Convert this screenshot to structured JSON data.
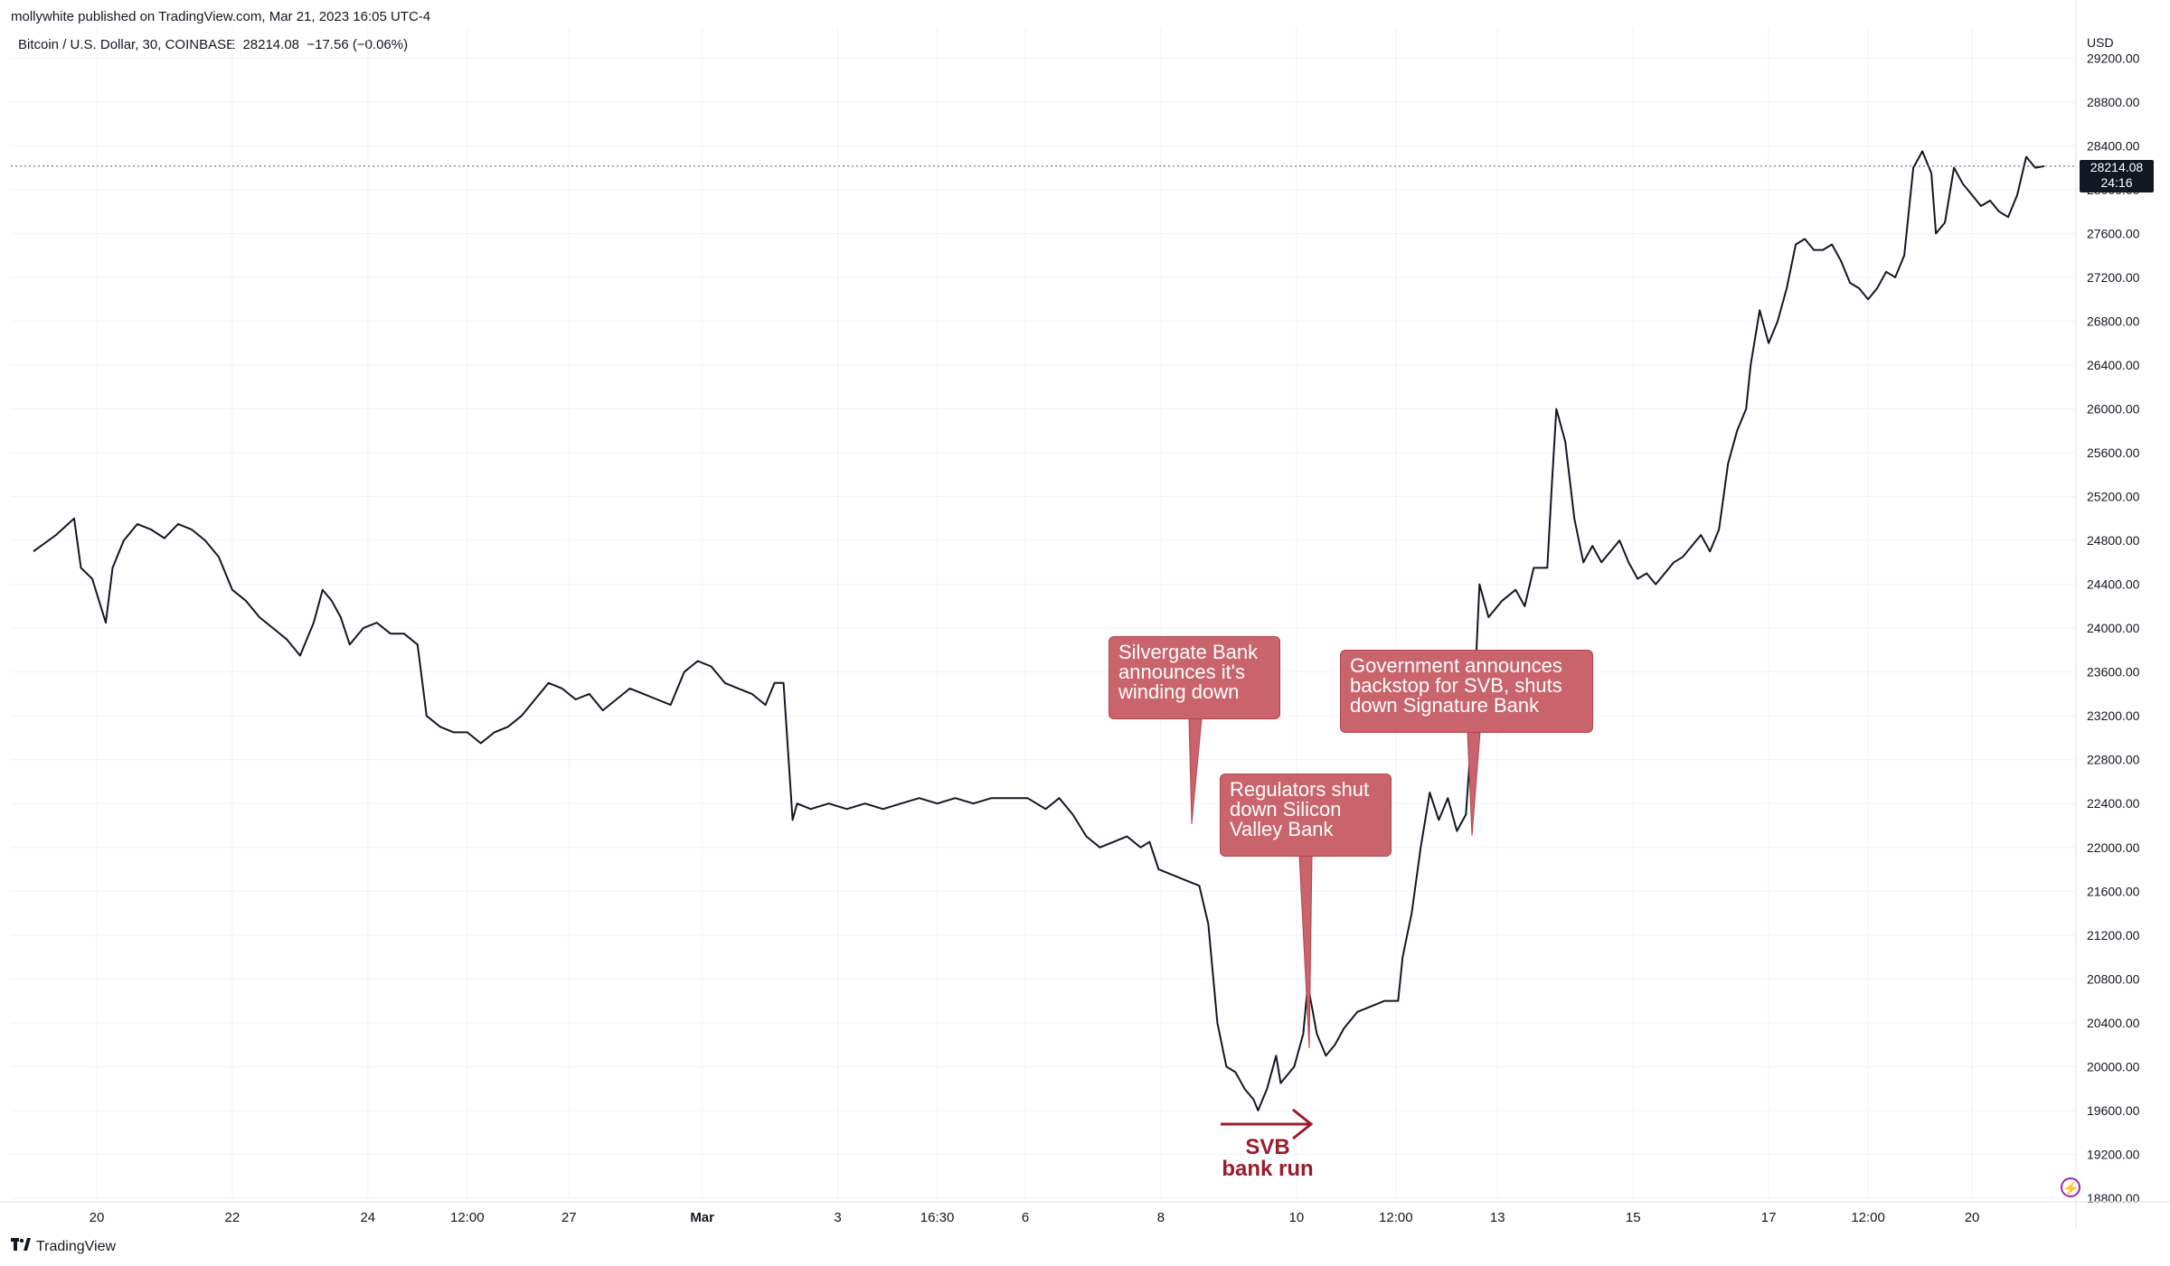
{
  "header": {
    "publisher": "mollywhite published on TradingView.com, Mar 21, 2023 16:05 UTC-4",
    "symbol": "Bitcoin / U.S. Dollar, 30, COINBASE",
    "last_price": "28214.08",
    "change": "−17.56 (−0.06%)",
    "currency": "USD"
  },
  "price_tag": {
    "price": "28214.08",
    "countdown": "24:16"
  },
  "footer": {
    "brand": "TradingView",
    "icon": "tradingview-logo-icon"
  },
  "colors": {
    "line": "#131722",
    "annotation": "#c9636c",
    "svb_arrow": "#9b1c2b",
    "grid": "#f0f3fa"
  },
  "annotations": [
    {
      "text": [
        "Silvergate Bank",
        "announces it's",
        "winding down"
      ]
    },
    {
      "text": [
        "Regulators shut",
        "down Silicon",
        "Valley Bank"
      ]
    },
    {
      "text": [
        "Government announces",
        "backstop for SVB, shuts",
        "down Signature Bank"
      ]
    }
  ],
  "svb_run": {
    "lines": [
      "SVB",
      "bank run"
    ]
  },
  "chart_data": {
    "type": "line",
    "series": [
      {
        "values": [
          [
            0.0,
            24700
          ],
          [
            0.5,
            24850
          ],
          [
            0.9,
            25000
          ],
          [
            1.05,
            24550
          ],
          [
            1.3,
            24450
          ],
          [
            1.6,
            24050
          ],
          [
            1.75,
            24550
          ],
          [
            2.0,
            24800
          ],
          [
            2.3,
            24950
          ],
          [
            2.6,
            24900
          ],
          [
            2.9,
            24820
          ],
          [
            3.2,
            24950
          ],
          [
            3.5,
            24900
          ],
          [
            3.8,
            24800
          ],
          [
            4.1,
            24650
          ],
          [
            4.4,
            24350
          ],
          [
            4.7,
            24250
          ],
          [
            5.0,
            24100
          ],
          [
            5.3,
            24000
          ],
          [
            5.6,
            23900
          ],
          [
            5.9,
            23750
          ],
          [
            6.2,
            24050
          ],
          [
            6.4,
            24350
          ],
          [
            6.6,
            24250
          ],
          [
            6.8,
            24100
          ],
          [
            7.0,
            23850
          ],
          [
            7.3,
            24000
          ],
          [
            7.6,
            24050
          ],
          [
            7.9,
            23950
          ],
          [
            8.2,
            23950
          ],
          [
            8.5,
            23850
          ],
          [
            8.7,
            23200
          ],
          [
            9.0,
            23100
          ],
          [
            9.3,
            23050
          ],
          [
            9.6,
            23050
          ],
          [
            9.9,
            22950
          ],
          [
            10.2,
            23050
          ],
          [
            10.5,
            23100
          ],
          [
            10.8,
            23200
          ],
          [
            11.1,
            23350
          ],
          [
            11.4,
            23500
          ],
          [
            11.7,
            23450
          ],
          [
            12.0,
            23350
          ],
          [
            12.3,
            23400
          ],
          [
            12.6,
            23250
          ],
          [
            12.9,
            23350
          ],
          [
            13.2,
            23450
          ],
          [
            13.5,
            23400
          ],
          [
            13.8,
            23350
          ],
          [
            14.1,
            23300
          ],
          [
            14.4,
            23600
          ],
          [
            14.7,
            23700
          ],
          [
            15.0,
            23650
          ],
          [
            15.3,
            23500
          ],
          [
            15.6,
            23450
          ],
          [
            15.9,
            23400
          ],
          [
            16.2,
            23300
          ],
          [
            16.4,
            23500
          ],
          [
            16.6,
            23500
          ],
          [
            16.8,
            22250
          ],
          [
            16.9,
            22400
          ],
          [
            17.2,
            22350
          ],
          [
            17.6,
            22400
          ],
          [
            18.0,
            22350
          ],
          [
            18.4,
            22400
          ],
          [
            18.8,
            22350
          ],
          [
            19.2,
            22400
          ],
          [
            19.6,
            22450
          ],
          [
            20.0,
            22400
          ],
          [
            20.4,
            22450
          ],
          [
            20.8,
            22400
          ],
          [
            21.2,
            22450
          ],
          [
            21.6,
            22450
          ],
          [
            22.0,
            22450
          ],
          [
            22.4,
            22350
          ],
          [
            22.7,
            22450
          ],
          [
            23.0,
            22300
          ],
          [
            23.3,
            22100
          ],
          [
            23.6,
            22000
          ],
          [
            23.9,
            22050
          ],
          [
            24.2,
            22100
          ],
          [
            24.5,
            22000
          ],
          [
            24.7,
            22050
          ],
          [
            24.9,
            21800
          ],
          [
            25.2,
            21750
          ],
          [
            25.5,
            21700
          ],
          [
            25.8,
            21650
          ],
          [
            26.0,
            21300
          ],
          [
            26.2,
            20400
          ],
          [
            26.4,
            20000
          ],
          [
            26.6,
            19950
          ],
          [
            26.8,
            19800
          ],
          [
            27.0,
            19700
          ],
          [
            27.1,
            19600
          ],
          [
            27.3,
            19800
          ],
          [
            27.5,
            20100
          ],
          [
            27.6,
            19850
          ],
          [
            27.9,
            20000
          ],
          [
            28.1,
            20300
          ],
          [
            28.2,
            20750
          ],
          [
            28.4,
            20300
          ],
          [
            28.6,
            20100
          ],
          [
            28.8,
            20200
          ],
          [
            29.0,
            20350
          ],
          [
            29.3,
            20500
          ],
          [
            29.6,
            20550
          ],
          [
            29.9,
            20600
          ],
          [
            30.2,
            20600
          ],
          [
            30.3,
            21000
          ],
          [
            30.5,
            21400
          ],
          [
            30.7,
            22000
          ],
          [
            30.9,
            22500
          ],
          [
            31.1,
            22250
          ],
          [
            31.3,
            22450
          ],
          [
            31.5,
            22150
          ],
          [
            31.7,
            22300
          ],
          [
            31.9,
            23500
          ],
          [
            32.0,
            24400
          ],
          [
            32.2,
            24100
          ],
          [
            32.5,
            24250
          ],
          [
            32.8,
            24350
          ],
          [
            33.0,
            24200
          ],
          [
            33.2,
            24550
          ],
          [
            33.5,
            24550
          ],
          [
            33.6,
            25300
          ],
          [
            33.7,
            26000
          ],
          [
            33.9,
            25700
          ],
          [
            34.1,
            25000
          ],
          [
            34.3,
            24600
          ],
          [
            34.5,
            24750
          ],
          [
            34.7,
            24600
          ],
          [
            34.9,
            24700
          ],
          [
            35.1,
            24800
          ],
          [
            35.3,
            24600
          ],
          [
            35.5,
            24450
          ],
          [
            35.7,
            24500
          ],
          [
            35.9,
            24400
          ],
          [
            36.1,
            24500
          ],
          [
            36.3,
            24600
          ],
          [
            36.5,
            24650
          ],
          [
            36.7,
            24750
          ],
          [
            36.9,
            24850
          ],
          [
            37.1,
            24700
          ],
          [
            37.3,
            24900
          ],
          [
            37.5,
            25500
          ],
          [
            37.7,
            25800
          ],
          [
            37.9,
            26000
          ],
          [
            38.0,
            26400
          ],
          [
            38.2,
            26900
          ],
          [
            38.4,
            26600
          ],
          [
            38.6,
            26800
          ],
          [
            38.8,
            27100
          ],
          [
            39.0,
            27500
          ],
          [
            39.2,
            27550
          ],
          [
            39.4,
            27450
          ],
          [
            39.6,
            27450
          ],
          [
            39.8,
            27500
          ],
          [
            40.0,
            27350
          ],
          [
            40.2,
            27150
          ],
          [
            40.4,
            27100
          ],
          [
            40.6,
            27000
          ],
          [
            40.8,
            27100
          ],
          [
            41.0,
            27250
          ],
          [
            41.2,
            27200
          ],
          [
            41.4,
            27400
          ],
          [
            41.5,
            27800
          ],
          [
            41.6,
            28200
          ],
          [
            41.8,
            28350
          ],
          [
            42.0,
            28150
          ],
          [
            42.1,
            27600
          ],
          [
            42.3,
            27700
          ],
          [
            42.5,
            28200
          ],
          [
            42.7,
            28050
          ],
          [
            42.9,
            27950
          ],
          [
            43.1,
            27850
          ],
          [
            43.3,
            27900
          ],
          [
            43.5,
            27800
          ],
          [
            43.7,
            27750
          ],
          [
            43.9,
            27950
          ],
          [
            44.1,
            28300
          ],
          [
            44.3,
            28200
          ],
          [
            44.5,
            28214
          ]
        ]
      }
    ],
    "x_ticks": [
      {
        "x": 1.4,
        "label": "20"
      },
      {
        "x": 4.4,
        "label": "22"
      },
      {
        "x": 7.4,
        "label": "24"
      },
      {
        "x": 9.6,
        "label": "12:00"
      },
      {
        "x": 11.85,
        "label": "27"
      },
      {
        "x": 14.8,
        "label": "Mar"
      },
      {
        "x": 17.8,
        "label": "3"
      },
      {
        "x": 20.0,
        "label": "16:30"
      },
      {
        "x": 21.95,
        "label": "6"
      },
      {
        "x": 24.95,
        "label": "8"
      },
      {
        "x": 27.95,
        "label": "10"
      },
      {
        "x": 30.15,
        "label": "12:00"
      },
      {
        "x": 32.4,
        "label": "13"
      },
      {
        "x": 35.4,
        "label": "15"
      },
      {
        "x": 38.4,
        "label": "17"
      },
      {
        "x": 40.6,
        "label": "12:00"
      },
      {
        "x": 42.9,
        "label": "20"
      }
    ],
    "ylim": [
      18800,
      29400
    ],
    "y_ticks": [
      18800,
      19200,
      19600,
      20000,
      20400,
      20800,
      21200,
      21600,
      22000,
      22400,
      22800,
      23200,
      23600,
      24000,
      24400,
      24800,
      25200,
      25600,
      26000,
      26400,
      26800,
      27200,
      27600,
      28000,
      28400,
      28800,
      29200
    ],
    "x_grid": [
      1.4,
      4.4,
      7.4,
      9.6,
      11.85,
      14.8,
      17.8,
      20.0,
      21.95,
      24.95,
      27.95,
      30.15,
      32.4,
      35.4,
      38.4,
      40.6,
      42.9
    ],
    "grid": true
  }
}
